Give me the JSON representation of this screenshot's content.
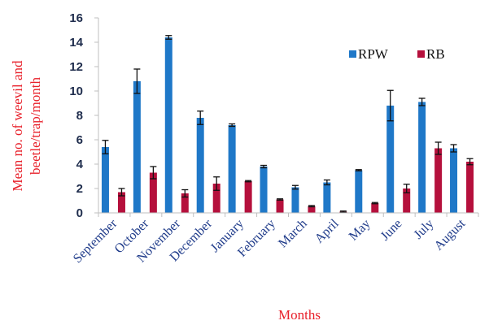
{
  "chart_data": {
    "type": "bar",
    "ylabel_lines": [
      "Mean no. of weevil and",
      "beetle/trap/month"
    ],
    "xlabel": "Months",
    "ylim": [
      0,
      16
    ],
    "yticks": [
      0,
      2,
      4,
      6,
      8,
      10,
      12,
      14,
      16
    ],
    "categories": [
      "September",
      "October",
      "November",
      "December",
      "January",
      "February",
      "March",
      "April",
      "May",
      "June",
      "July",
      "August"
    ],
    "series": [
      {
        "name": "RPW",
        "color": "#1f78c8",
        "values": [
          5.4,
          10.8,
          14.4,
          7.8,
          7.2,
          3.8,
          2.1,
          2.5,
          3.5,
          8.8,
          9.1,
          5.3
        ],
        "errors": [
          0.55,
          1.0,
          0.15,
          0.55,
          0.1,
          0.1,
          0.15,
          0.2,
          0.05,
          1.25,
          0.3,
          0.3
        ]
      },
      {
        "name": "RB",
        "color": "#b5103c",
        "values": [
          1.7,
          3.3,
          1.6,
          2.4,
          2.6,
          1.1,
          0.55,
          0.1,
          0.8,
          2.0,
          5.3,
          4.2
        ],
        "errors": [
          0.3,
          0.5,
          0.3,
          0.55,
          0.05,
          0.05,
          0.05,
          0.05,
          0.05,
          0.35,
          0.5,
          0.25
        ]
      }
    ],
    "legend_position": "top-right",
    "grid": false
  }
}
